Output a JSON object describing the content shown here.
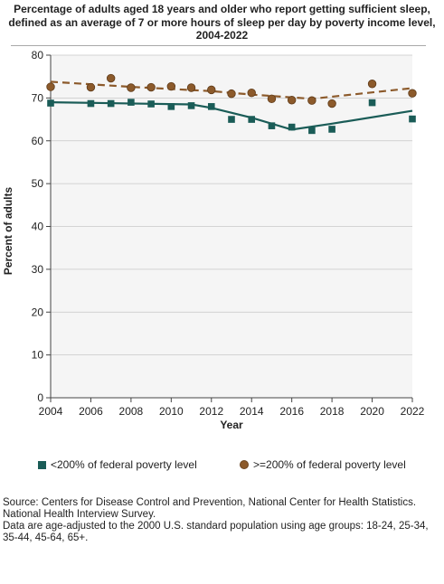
{
  "title": "Percentage of adults aged 18 years and older who report getting sufficient sleep, defined as an average of 7 or more hours of sleep per day by poverty income level, 2004-2022",
  "chart_data": {
    "type": "scatter",
    "xlabel": "Year",
    "ylabel": "Percent of adults",
    "xlim": [
      2004,
      2022
    ],
    "ylim": [
      0,
      80
    ],
    "xticks": [
      2004,
      2006,
      2008,
      2010,
      2012,
      2014,
      2016,
      2018,
      2020,
      2022
    ],
    "yticks": [
      0,
      10,
      20,
      30,
      40,
      50,
      60,
      70,
      80
    ],
    "series": [
      {
        "name": "<200% of federal poverty level",
        "color": "#1a5c57",
        "marker": "square",
        "points": [
          {
            "x": 2004,
            "y": 68.8
          },
          {
            "x": 2006,
            "y": 68.7
          },
          {
            "x": 2007,
            "y": 68.7
          },
          {
            "x": 2008,
            "y": 69.0
          },
          {
            "x": 2009,
            "y": 68.6
          },
          {
            "x": 2010,
            "y": 68.0
          },
          {
            "x": 2011,
            "y": 68.2
          },
          {
            "x": 2012,
            "y": 68.0
          },
          {
            "x": 2013,
            "y": 65.0
          },
          {
            "x": 2014,
            "y": 65.0
          },
          {
            "x": 2015,
            "y": 63.5
          },
          {
            "x": 2016,
            "y": 63.2
          },
          {
            "x": 2017,
            "y": 62.4
          },
          {
            "x": 2018,
            "y": 62.7
          },
          {
            "x": 2020,
            "y": 68.9
          },
          {
            "x": 2022,
            "y": 65.1
          }
        ],
        "trend": [
          {
            "x": 2004,
            "y": 69.0
          },
          {
            "x": 2011,
            "y": 68.5
          },
          {
            "x": 2012,
            "y": 67.7
          },
          {
            "x": 2014,
            "y": 65.4
          },
          {
            "x": 2016,
            "y": 62.6
          },
          {
            "x": 2018,
            "y": 64.0
          },
          {
            "x": 2022,
            "y": 67.0
          }
        ]
      },
      {
        "name": ">=200% of federal poverty level",
        "color": "#8c5a2b",
        "marker": "circle",
        "points": [
          {
            "x": 2004,
            "y": 72.6
          },
          {
            "x": 2006,
            "y": 72.5
          },
          {
            "x": 2007,
            "y": 74.6
          },
          {
            "x": 2008,
            "y": 72.4
          },
          {
            "x": 2009,
            "y": 72.5
          },
          {
            "x": 2010,
            "y": 72.7
          },
          {
            "x": 2011,
            "y": 72.4
          },
          {
            "x": 2012,
            "y": 71.9
          },
          {
            "x": 2013,
            "y": 71.0
          },
          {
            "x": 2014,
            "y": 71.2
          },
          {
            "x": 2015,
            "y": 69.8
          },
          {
            "x": 2016,
            "y": 69.5
          },
          {
            "x": 2017,
            "y": 69.4
          },
          {
            "x": 2018,
            "y": 68.7
          },
          {
            "x": 2020,
            "y": 73.3
          },
          {
            "x": 2022,
            "y": 71.1
          }
        ],
        "trend": [
          {
            "x": 2004,
            "y": 73.8
          },
          {
            "x": 2008,
            "y": 72.6
          },
          {
            "x": 2012,
            "y": 71.6
          },
          {
            "x": 2014,
            "y": 70.8
          },
          {
            "x": 2017,
            "y": 69.8
          },
          {
            "x": 2022,
            "y": 72.3
          }
        ]
      }
    ]
  },
  "legend": {
    "below": "<200% of federal poverty level",
    "above": ">=200% of federal poverty level"
  },
  "source": {
    "line1": "Source: Centers for Disease Control and Prevention, National Center for Health Statistics. National Health Interview Survey.",
    "line2": "Data are age-adjusted to the 2000 U.S. standard population using age groups: 18-24, 25-34, 35-44, 45-64, 65+."
  }
}
